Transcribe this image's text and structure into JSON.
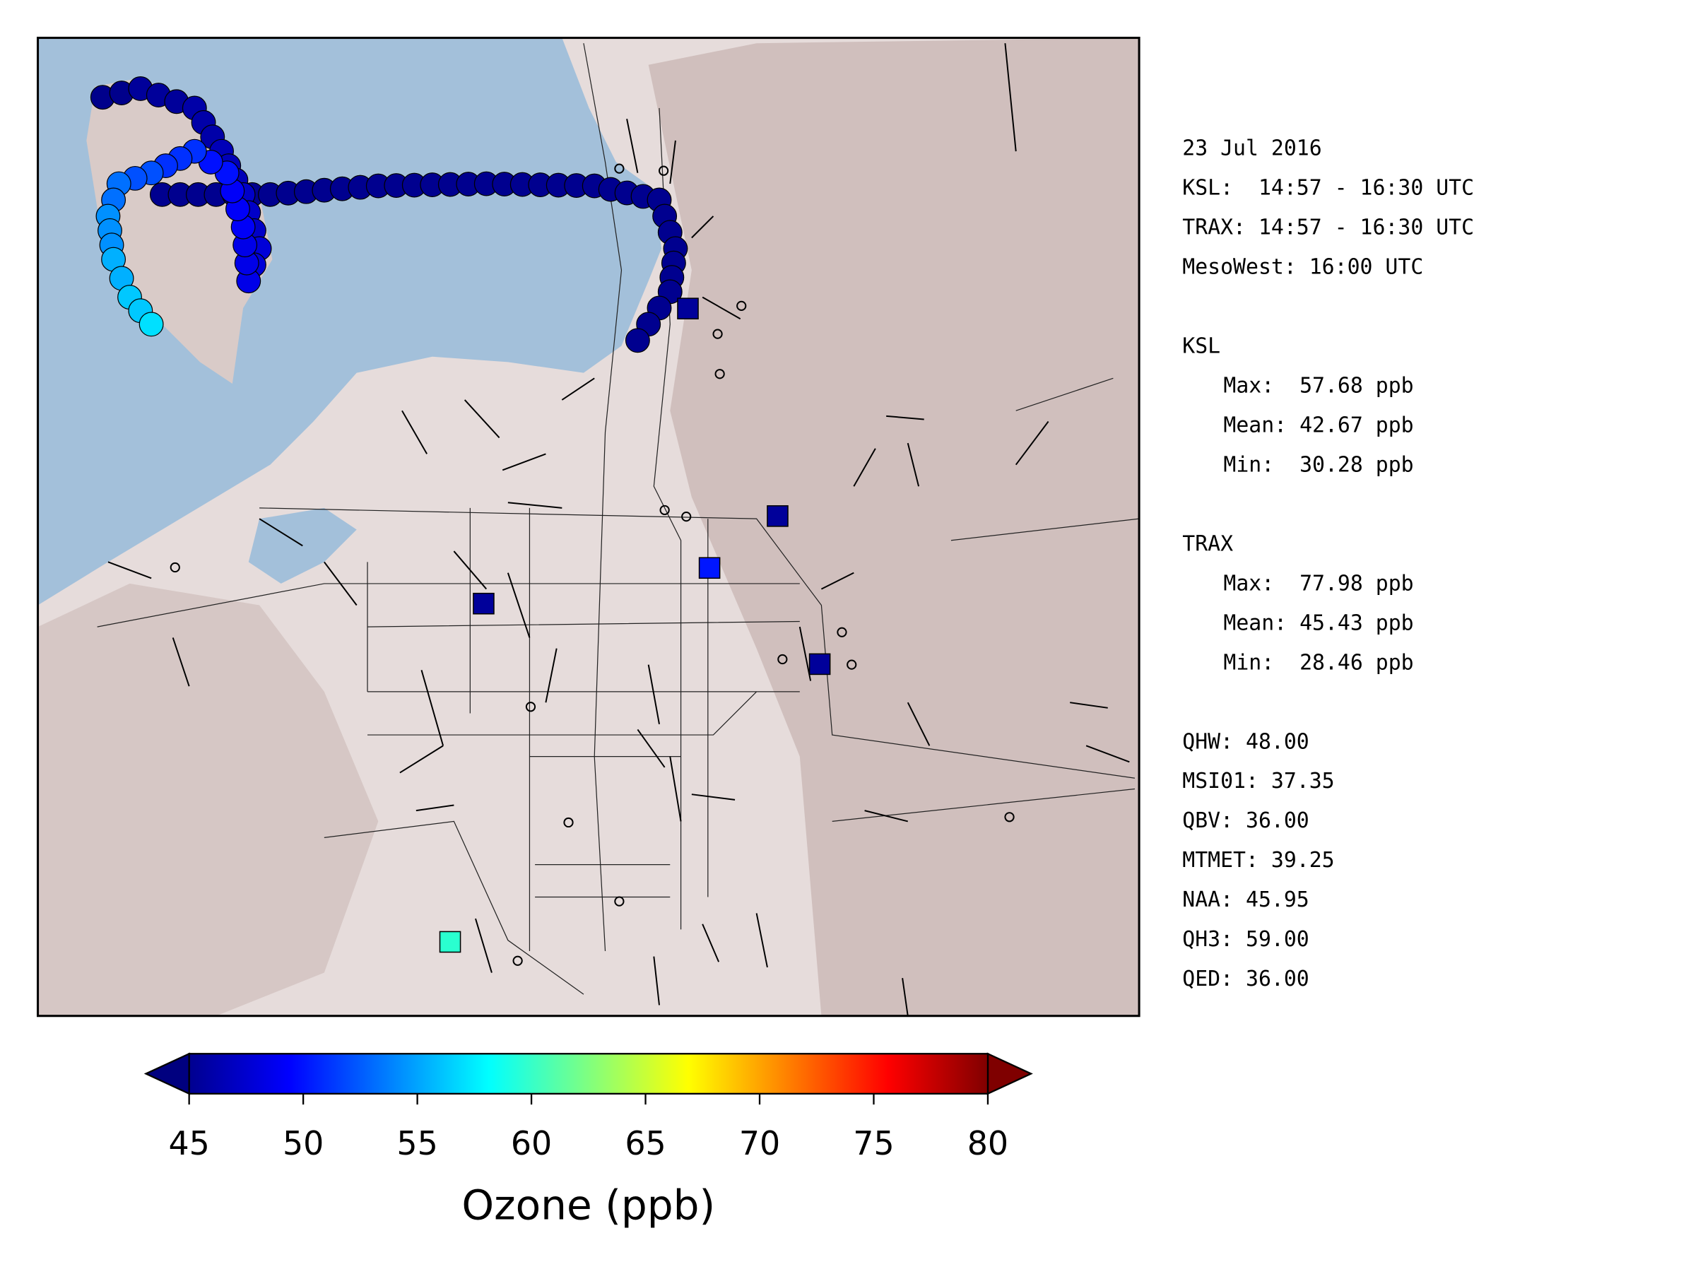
{
  "info": {
    "groups": [
      [
        "23 Jul 2016",
        "KSL:  14:57 - 16:30 UTC",
        "TRAX: 14:57 - 16:30 UTC",
        "MesoWest: 16:00 UTC"
      ],
      [
        "KSL",
        "Max:  57.68 ppb",
        "Mean: 42.67 ppb",
        "Min:  30.28 ppb"
      ],
      [
        "TRAX",
        "Max:  77.98 ppb",
        "Mean: 45.43 ppb",
        "Min:  28.46 ppb"
      ],
      [
        "QHW: 48.00",
        "MSI01: 37.35",
        "QBV: 36.00",
        "MTMET: 39.25",
        "NAA: 45.95",
        "QH3: 59.00",
        "QED: 36.00"
      ]
    ]
  },
  "colorbar": {
    "label": "Ozone (ppb)",
    "lim": [
      45,
      80
    ],
    "ticks": [
      45,
      50,
      55,
      60,
      65,
      70,
      75,
      80
    ],
    "colormap": "jet"
  }
}
